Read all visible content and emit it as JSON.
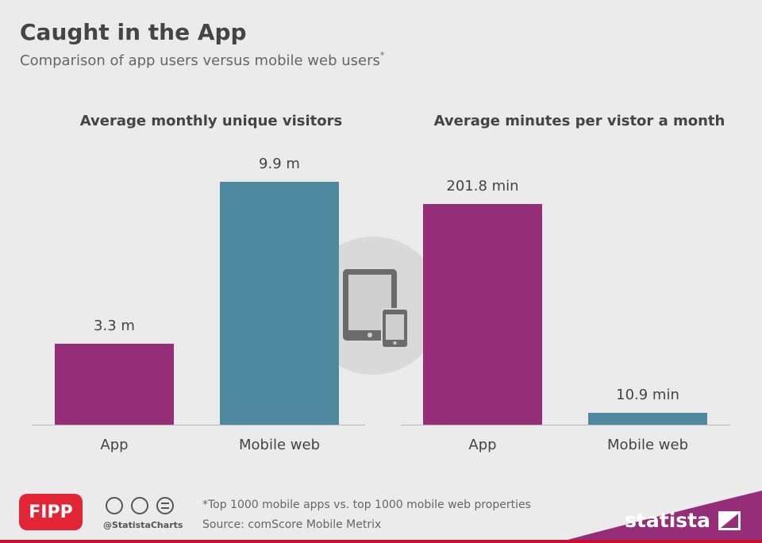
{
  "header": {
    "title": "Caught in the App",
    "subtitle": "Comparison of app users versus mobile web users",
    "subtitle_mark": "*"
  },
  "chart_data": [
    {
      "type": "bar",
      "title": "Average monthly unique visitors",
      "categories": [
        "App",
        "Mobile web"
      ],
      "values": [
        3.3,
        9.9
      ],
      "value_labels": [
        "3.3 m",
        "9.9 m"
      ],
      "colors": [
        "#962d78",
        "#4e89a0"
      ]
    },
    {
      "type": "bar",
      "title": "Average minutes per vistor a month",
      "categories": [
        "App",
        "Mobile web"
      ],
      "values": [
        201.8,
        10.9
      ],
      "value_labels": [
        "201.8 min",
        "10.9 min"
      ],
      "colors": [
        "#962d78",
        "#4e89a0"
      ]
    }
  ],
  "footer": {
    "logo": "FIPP",
    "handle": "@StatistaCharts",
    "note": "*Top 1000 mobile apps vs. top 1000 mobile web properties",
    "source": "Source: comScore Mobile Metrix",
    "brand": "statista"
  }
}
